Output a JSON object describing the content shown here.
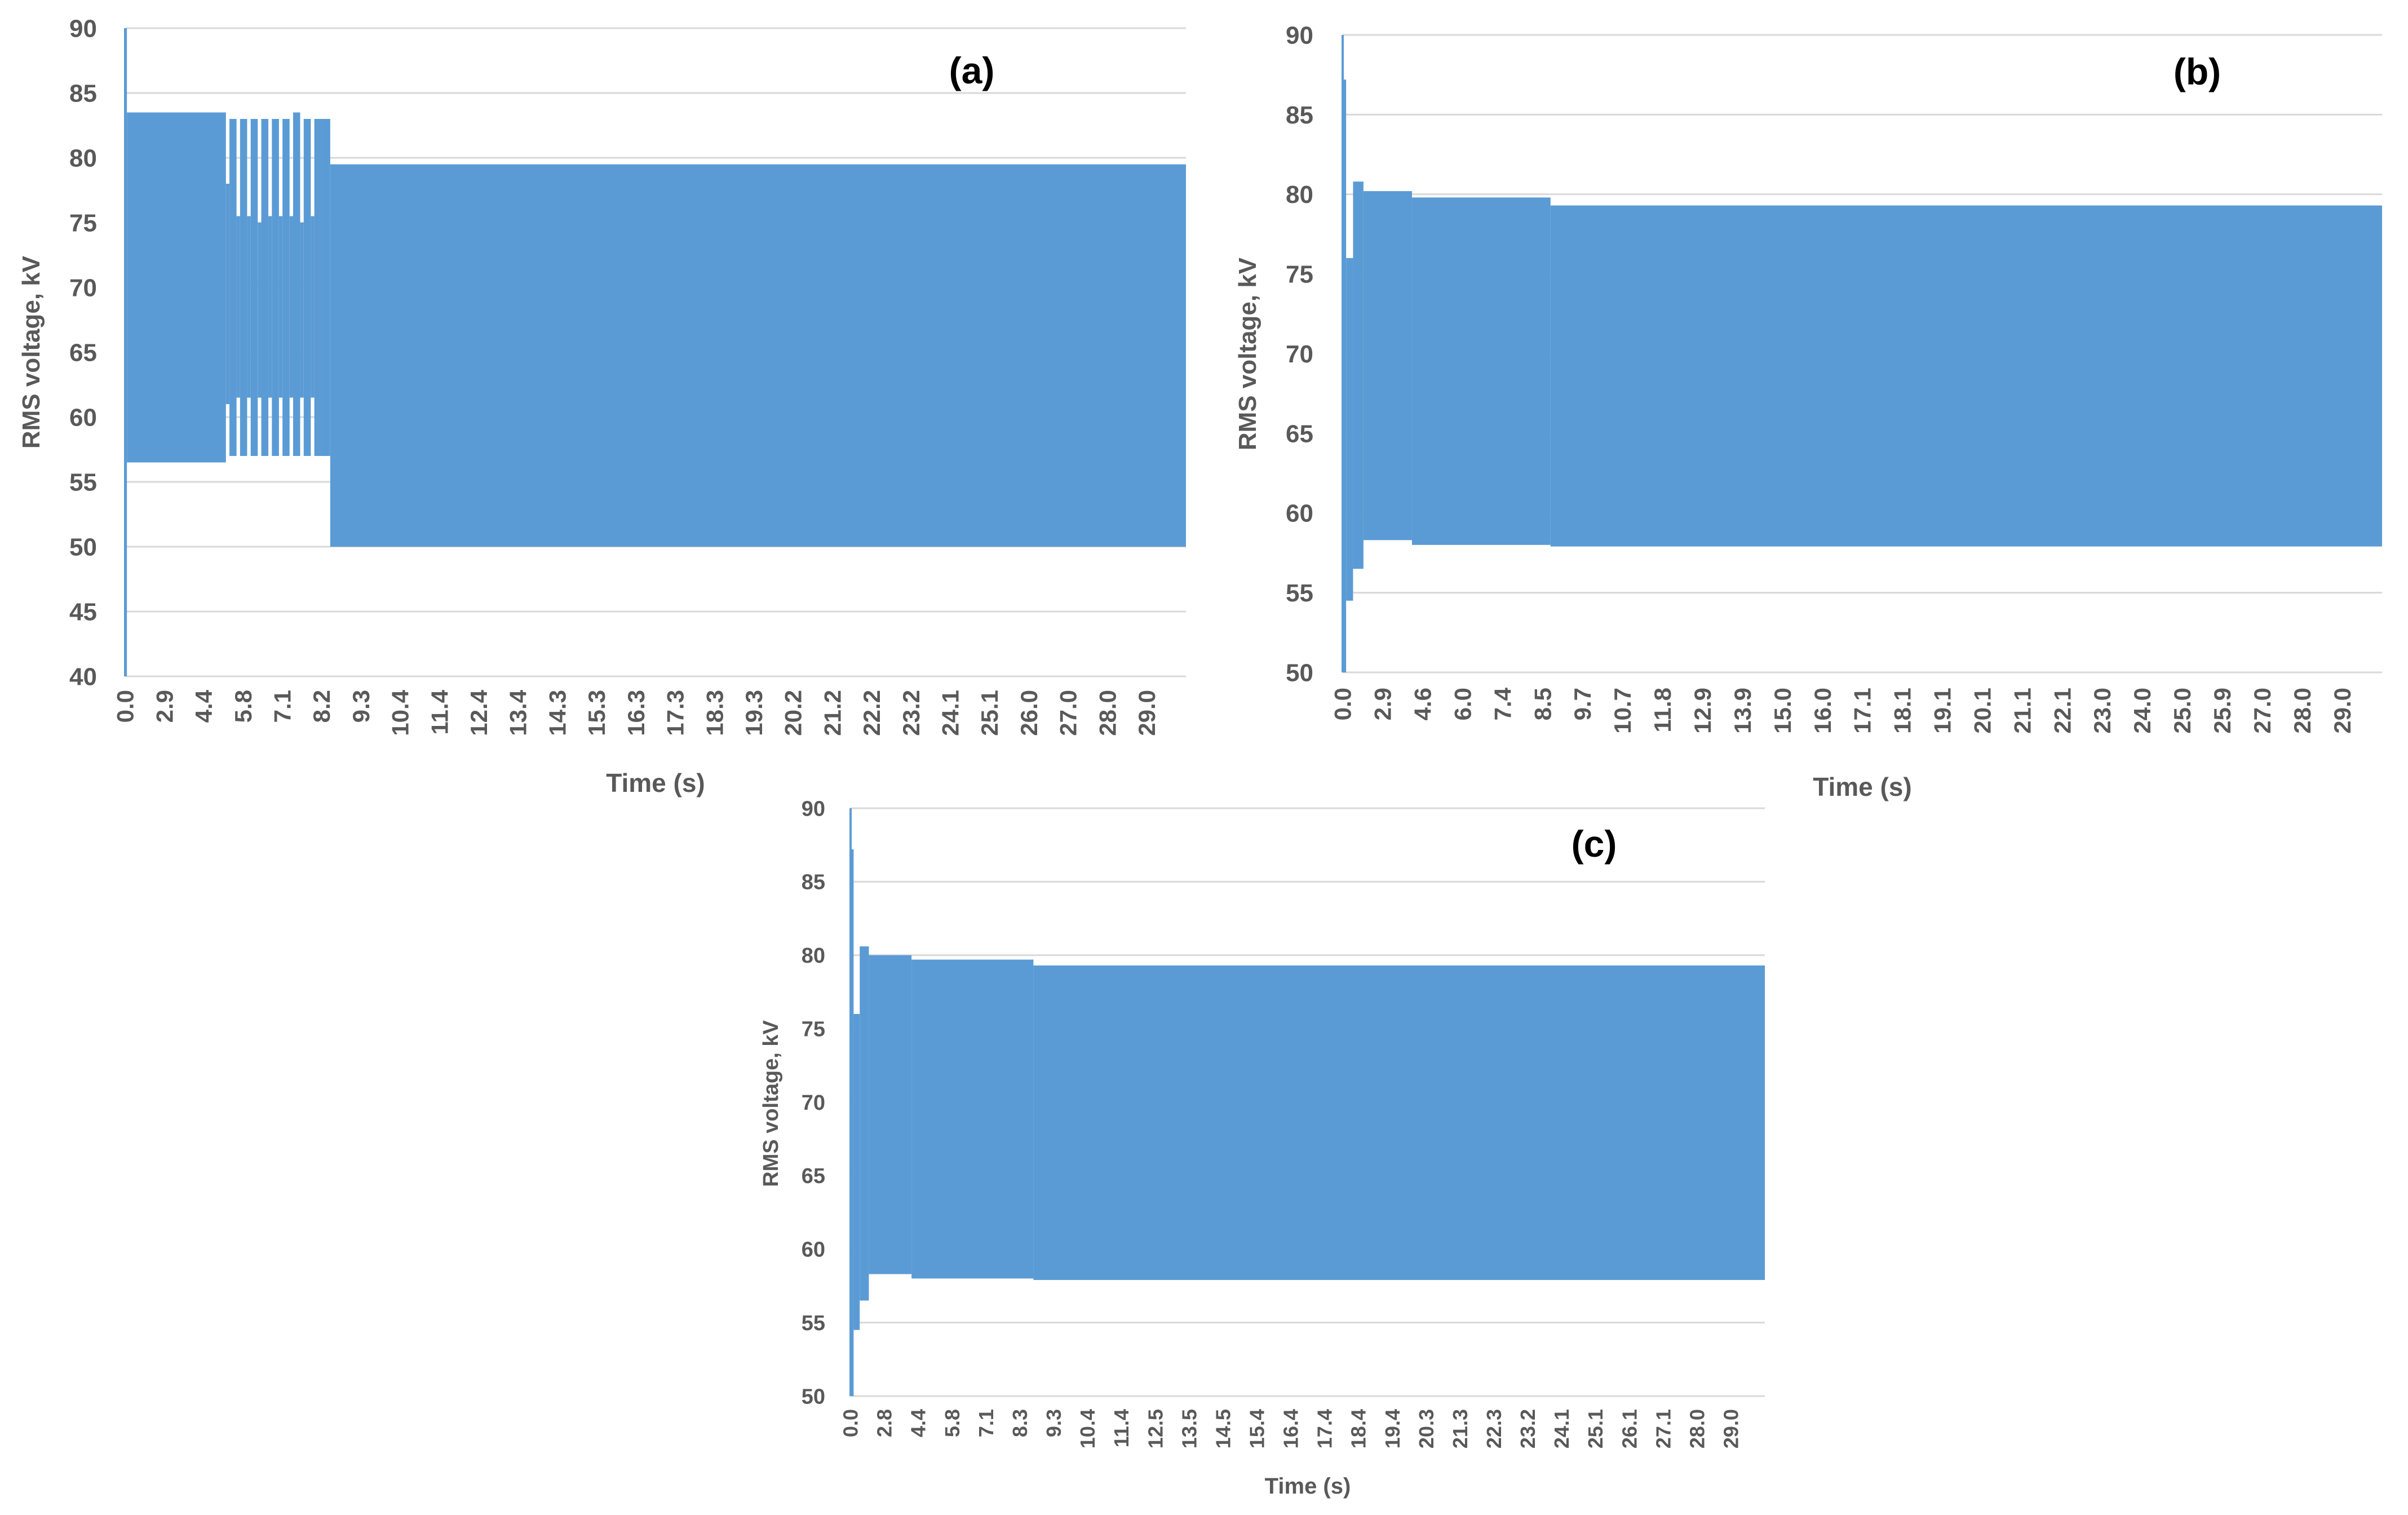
{
  "series_color": "#5b9bd5",
  "chart_data": [
    {
      "type": "area",
      "title": "(a)",
      "xlabel": "Time (s)",
      "ylabel": "RMS voltage, kV",
      "xlim": [
        0,
        30
      ],
      "ylim": [
        40,
        90
      ],
      "yticks": [
        40,
        45,
        50,
        55,
        60,
        65,
        70,
        75,
        80,
        85,
        90
      ],
      "xticks": [
        "0.0",
        "2.9",
        "4.4",
        "5.8",
        "7.1",
        "8.2",
        "9.3",
        "10.4",
        "11.4",
        "12.4",
        "13.4",
        "14.3",
        "15.3",
        "16.3",
        "17.3",
        "18.3",
        "19.3",
        "20.2",
        "21.2",
        "22.2",
        "23.2",
        "24.1",
        "25.1",
        "26.0",
        "27.0",
        "28.0",
        "29.0"
      ],
      "grid": true,
      "series": [
        {
          "envelope": [
            {
              "t0": 0.0,
              "t1": 0.05,
              "min": 40,
              "max": 90
            },
            {
              "t0": 0.05,
              "t1": 2.85,
              "min": 56.5,
              "max": 83.5
            },
            {
              "t0": 2.85,
              "t1": 2.95,
              "min": 61.0,
              "max": 78.0
            },
            {
              "t0": 2.95,
              "t1": 3.15,
              "min": 57.0,
              "max": 83.0
            },
            {
              "t0": 3.15,
              "t1": 3.25,
              "min": 61.5,
              "max": 75.5
            },
            {
              "t0": 3.25,
              "t1": 3.45,
              "min": 57.0,
              "max": 83.0
            },
            {
              "t0": 3.45,
              "t1": 3.55,
              "min": 61.5,
              "max": 75.5
            },
            {
              "t0": 3.55,
              "t1": 3.75,
              "min": 57.0,
              "max": 83.0
            },
            {
              "t0": 3.75,
              "t1": 3.85,
              "min": 61.5,
              "max": 75.0
            },
            {
              "t0": 3.85,
              "t1": 4.05,
              "min": 57.0,
              "max": 83.0
            },
            {
              "t0": 4.05,
              "t1": 4.15,
              "min": 61.5,
              "max": 75.5
            },
            {
              "t0": 4.15,
              "t1": 4.35,
              "min": 57.0,
              "max": 83.0
            },
            {
              "t0": 4.35,
              "t1": 4.45,
              "min": 61.5,
              "max": 75.5
            },
            {
              "t0": 4.45,
              "t1": 4.65,
              "min": 57.0,
              "max": 83.0
            },
            {
              "t0": 4.65,
              "t1": 4.75,
              "min": 61.5,
              "max": 75.5
            },
            {
              "t0": 4.75,
              "t1": 4.95,
              "min": 57.0,
              "max": 83.5
            },
            {
              "t0": 4.95,
              "t1": 5.05,
              "min": 61.5,
              "max": 75.0
            },
            {
              "t0": 5.05,
              "t1": 5.25,
              "min": 57.0,
              "max": 83.0
            },
            {
              "t0": 5.25,
              "t1": 5.35,
              "min": 61.5,
              "max": 75.5
            },
            {
              "t0": 5.35,
              "t1": 5.5,
              "min": 57.0,
              "max": 83.0
            },
            {
              "t0": 5.5,
              "t1": 5.8,
              "min": 57.0,
              "max": 83.0
            },
            {
              "t0": 5.8,
              "t1": 30.0,
              "min": 50.0,
              "max": 79.5
            }
          ]
        }
      ]
    },
    {
      "type": "area",
      "title": "(b)",
      "xlabel": "Time (s)",
      "ylabel": "RMS voltage, kV",
      "xlim": [
        0,
        30
      ],
      "ylim": [
        50,
        90
      ],
      "yticks": [
        50,
        55,
        60,
        65,
        70,
        75,
        80,
        85,
        90
      ],
      "xticks": [
        "0.0",
        "2.9",
        "4.6",
        "6.0",
        "7.4",
        "8.5",
        "9.7",
        "10.7",
        "11.8",
        "12.9",
        "13.9",
        "15.0",
        "16.0",
        "17.1",
        "18.1",
        "19.1",
        "20.1",
        "21.1",
        "22.1",
        "23.0",
        "24.0",
        "25.0",
        "25.9",
        "27.0",
        "28.0",
        "29.0"
      ],
      "grid": true,
      "series": [
        {
          "envelope": [
            {
              "t0": 0.0,
              "t1": 0.1,
              "min": 50.0,
              "max": 87.2
            },
            {
              "t0": 0.1,
              "t1": 0.3,
              "min": 54.5,
              "max": 76.0
            },
            {
              "t0": 0.3,
              "t1": 0.6,
              "min": 56.5,
              "max": 80.8
            },
            {
              "t0": 0.6,
              "t1": 2.0,
              "min": 58.3,
              "max": 80.2
            },
            {
              "t0": 2.0,
              "t1": 6.0,
              "min": 58.0,
              "max": 79.8
            },
            {
              "t0": 6.0,
              "t1": 30.0,
              "min": 57.9,
              "max": 79.3
            }
          ]
        }
      ]
    },
    {
      "type": "area",
      "title": "(c)",
      "xlabel": "Time (s)",
      "ylabel": "RMS voltage, kV",
      "xlim": [
        0,
        30
      ],
      "ylim": [
        50,
        90
      ],
      "yticks": [
        50,
        55,
        60,
        65,
        70,
        75,
        80,
        85,
        90
      ],
      "xticks": [
        "0.0",
        "2.8",
        "4.4",
        "5.8",
        "7.1",
        "8.3",
        "9.3",
        "10.4",
        "11.4",
        "12.5",
        "13.5",
        "14.5",
        "15.4",
        "16.4",
        "17.4",
        "18.4",
        "19.4",
        "20.3",
        "21.3",
        "22.3",
        "23.2",
        "24.1",
        "25.1",
        "26.1",
        "27.1",
        "28.0",
        "29.0"
      ],
      "grid": true,
      "series": [
        {
          "envelope": [
            {
              "t0": 0.0,
              "t1": 0.1,
              "min": 50.0,
              "max": 87.2
            },
            {
              "t0": 0.1,
              "t1": 0.3,
              "min": 54.5,
              "max": 76.0
            },
            {
              "t0": 0.3,
              "t1": 0.6,
              "min": 56.5,
              "max": 80.6
            },
            {
              "t0": 0.6,
              "t1": 2.0,
              "min": 58.3,
              "max": 80.0
            },
            {
              "t0": 2.0,
              "t1": 6.0,
              "min": 58.0,
              "max": 79.7
            },
            {
              "t0": 6.0,
              "t1": 30.0,
              "min": 57.9,
              "max": 79.3
            }
          ]
        }
      ]
    }
  ]
}
